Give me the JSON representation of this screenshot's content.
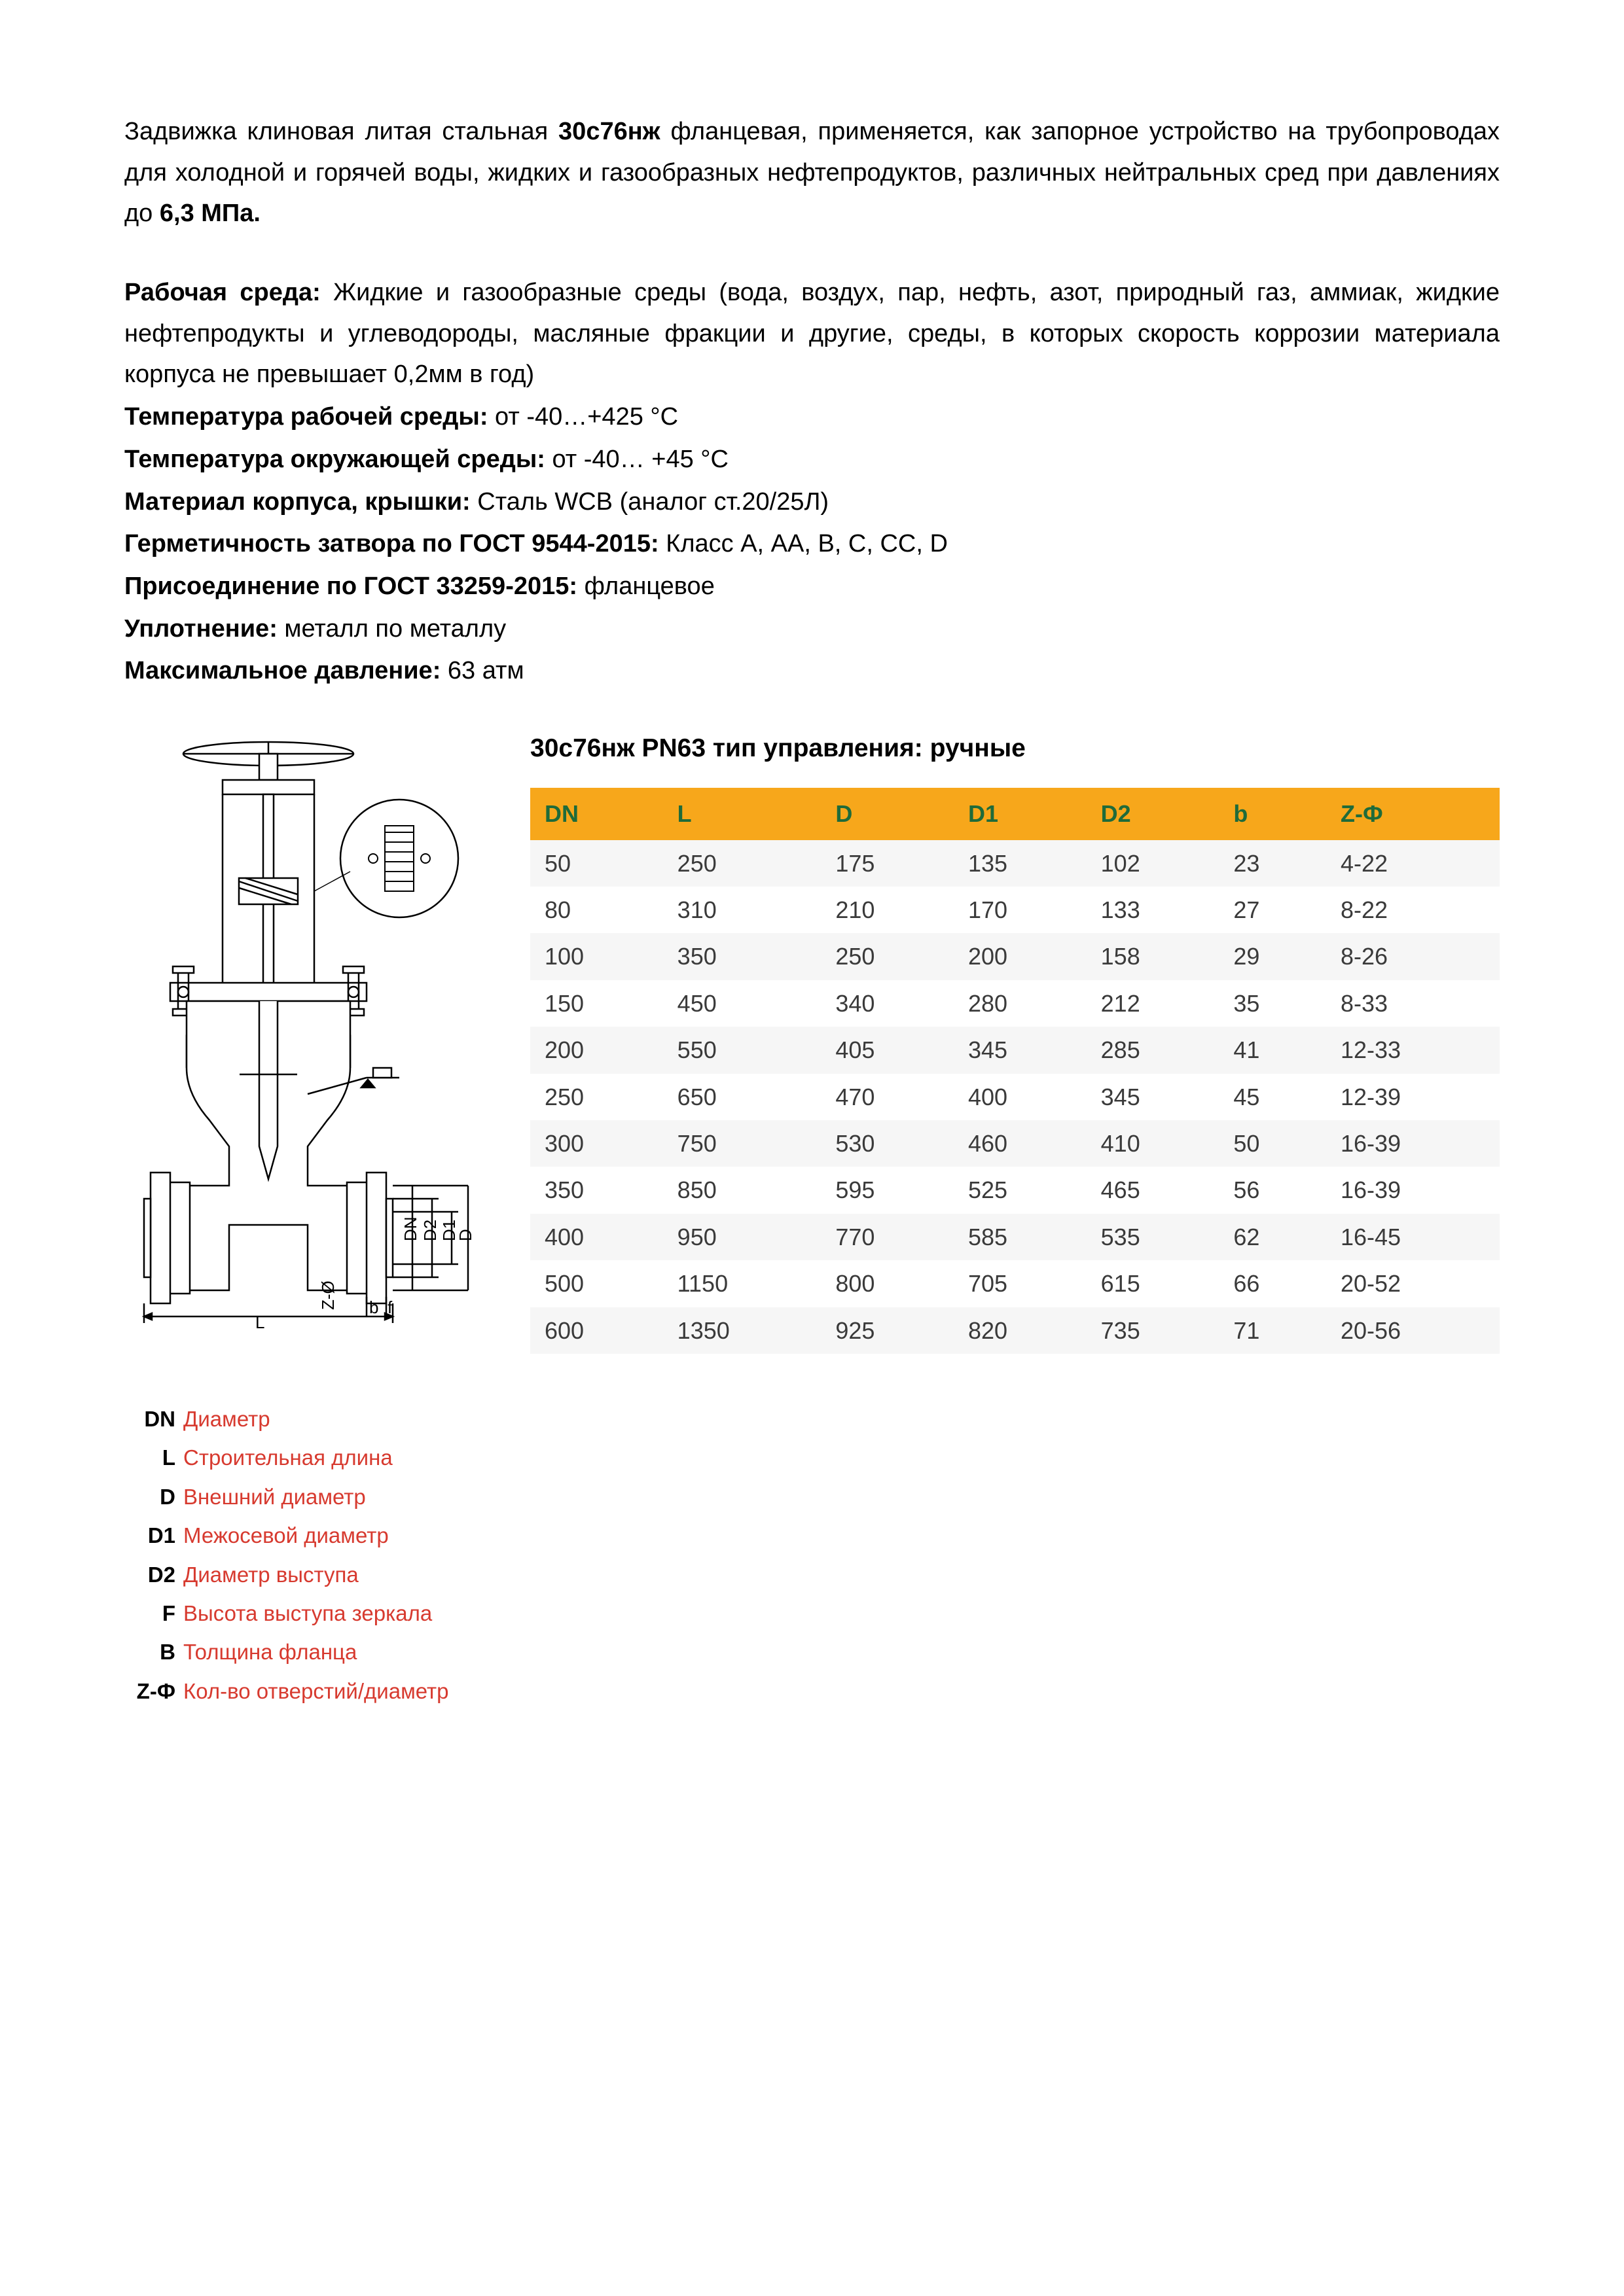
{
  "colors": {
    "header_bg": "#f7a71b",
    "header_text": "#1f6b3a",
    "row_odd": "#f6f6f6",
    "row_even": "#ffffff",
    "legend_red": "#d73a2f",
    "text": "#000000",
    "body_text": "#3a3a3a"
  },
  "intro": {
    "part1": "Задвижка клиновая литая стальная ",
    "model": "30с76нж",
    "part2": " фланцевая, применяется, как запорное устройство на трубопроводах для холодной и горячей воды, жидких и газообразных нефтепродуктов, различных нейтральных сред при давлениях до ",
    "pressure": "6,3 МПа."
  },
  "specs": [
    {
      "label": "Рабочая среда:",
      "value": " Жидкие и газообразные среды (вода, воздух, пар, нефть, азот, природный газ, аммиак, жидкие нефтепродукты и углеводороды, масляные фракции и другие, среды, в которых скорость коррозии материала корпуса не превышает 0,2мм в год)",
      "justify": true
    },
    {
      "label": "Температура рабочей среды:",
      "value": " от -40…+425 °С"
    },
    {
      "label": "Температура окружающей среды:",
      "value": " от -40… +45 °С"
    },
    {
      "label": "Материал корпуса, крышки:",
      "value": " Сталь WCB (аналог ст.20/25Л)"
    },
    {
      "label": "Герметичность затвора по ГОСТ 9544-2015:",
      "value": " Класс А, АА, В, С, СС, D"
    },
    {
      "label": "Присоединение по ГОСТ 33259-2015:",
      "value": " фланцевое"
    },
    {
      "label": "Уплотнение:",
      "value": " металл по металлу"
    },
    {
      "label": "Максимальное давление:",
      "value": " 63 атм"
    }
  ],
  "table": {
    "title": "30с76нж PN63 тип управления: ручные",
    "columns": [
      "DN",
      "L",
      "D",
      "D1",
      "D2",
      "b",
      "Z-Ф"
    ],
    "rows": [
      [
        "50",
        "250",
        "175",
        "135",
        "102",
        "23",
        "4-22"
      ],
      [
        "80",
        "310",
        "210",
        "170",
        "133",
        "27",
        "8-22"
      ],
      [
        "100",
        "350",
        "250",
        "200",
        "158",
        "29",
        "8-26"
      ],
      [
        "150",
        "450",
        "340",
        "280",
        "212",
        "35",
        "8-33"
      ],
      [
        "200",
        "550",
        "405",
        "345",
        "285",
        "41",
        "12-33"
      ],
      [
        "250",
        "650",
        "470",
        "400",
        "345",
        "45",
        "12-39"
      ],
      [
        "300",
        "750",
        "530",
        "460",
        "410",
        "50",
        "16-39"
      ],
      [
        "350",
        "850",
        "595",
        "525",
        "465",
        "56",
        "16-39"
      ],
      [
        "400",
        "950",
        "770",
        "585",
        "535",
        "62",
        "16-45"
      ],
      [
        "500",
        "1150",
        "800",
        "705",
        "615",
        "66",
        "20-52"
      ],
      [
        "600",
        "1350",
        "925",
        "820",
        "735",
        "71",
        "20-56"
      ]
    ]
  },
  "legend": [
    {
      "key": "DN",
      "val": "Диаметр"
    },
    {
      "key": "L",
      "val": "Строительная длина"
    },
    {
      "key": "D",
      "val": "Внешний диаметр"
    },
    {
      "key": "D1",
      "val": "Межосевой диаметр"
    },
    {
      "key": "D2",
      "val": "Диаметр выступа"
    },
    {
      "key": "F",
      "val": "Высота выступа зеркала"
    },
    {
      "key": "B",
      "val": "Толщина фланца"
    },
    {
      "key": "Z-Ф",
      "val": "Кол-во отверстий/диаметр"
    }
  ],
  "diagram": {
    "stroke": "#000000",
    "stroke_width": 2,
    "fill": "#ffffff",
    "labels": {
      "L": "L",
      "b": "b",
      "f": "f",
      "D": "D",
      "D1": "D1",
      "D2": "D2",
      "DN": "DN",
      "Z": "Z-Ø",
      "gradsym": "Δ"
    }
  }
}
